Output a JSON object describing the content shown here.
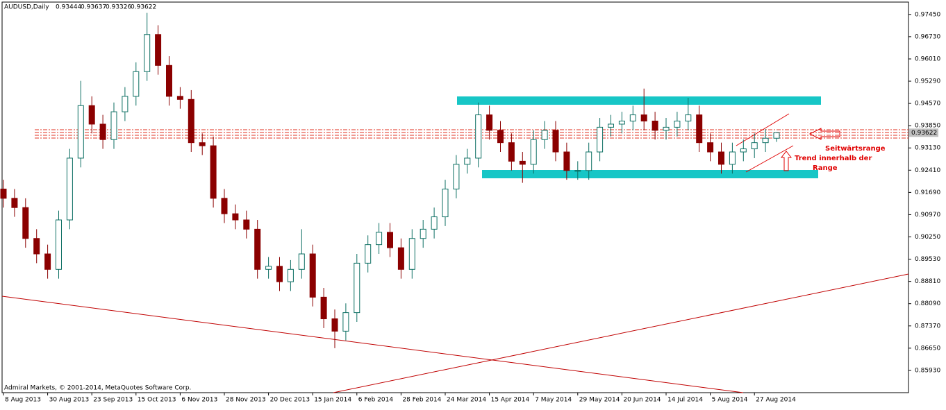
{
  "chart_data": {
    "type": "candlestick",
    "title": "AUDUSD,Daily",
    "credit": "Admiral Markets, © 2001-2014, MetaQuotes Software Corp.",
    "annotations": [
      "Seitwärtsrange",
      "Trend innerhalb der",
      "Range"
    ],
    "up_color": "#0b6e62",
    "down_color": "#8b0000",
    "categories": [
      "8 Aug 2013",
      null,
      null,
      null,
      "30 Aug 2013",
      null,
      null,
      null,
      "23 Sep 2013",
      null,
      null,
      null,
      "15 Oct 2013",
      null,
      null,
      null,
      "6 Nov 2013",
      null,
      null,
      null,
      "28 Nov 2013",
      null,
      null,
      null,
      "20 Dec 2013",
      null,
      null,
      null,
      "15 Jan 2014",
      null,
      null,
      null,
      "6 Feb 2014",
      null,
      null,
      null,
      "28 Feb 2014",
      null,
      null,
      null,
      "24 Mar 2014",
      null,
      null,
      null,
      "15 Apr 2014",
      null,
      null,
      null,
      "7 May 2014",
      null,
      null,
      null,
      "29 May 2014",
      null,
      null,
      null,
      "20 Jun 2014",
      null,
      null,
      null,
      "14 Jul 2014",
      null,
      null,
      null,
      "5 Aug 2014",
      null,
      null,
      null,
      "27 Aug 2014",
      null,
      null
    ],
    "open": [
      0.918,
      0.915,
      0.912,
      0.902,
      0.897,
      0.892,
      0.908,
      0.928,
      0.945,
      0.939,
      0.934,
      0.943,
      0.948,
      0.956,
      0.968,
      0.958,
      0.948,
      0.947,
      0.933,
      0.932,
      0.915,
      0.91,
      0.908,
      0.905,
      0.892,
      0.893,
      0.888,
      0.892,
      0.897,
      0.883,
      0.876,
      0.872,
      0.878,
      0.894,
      0.9,
      0.904,
      0.899,
      0.892,
      0.902,
      0.905,
      0.909,
      0.918,
      0.926,
      0.928,
      0.942,
      0.937,
      0.933,
      0.927,
      0.926,
      0.934,
      0.937,
      0.93,
      0.924,
      0.924,
      0.93,
      0.938,
      0.939,
      0.94,
      0.942,
      0.94,
      0.937,
      0.938,
      0.94,
      0.942,
      0.933,
      0.93,
      0.926,
      0.93,
      0.931,
      0.933,
      0.93444
    ],
    "high": [
      0.921,
      0.918,
      0.915,
      0.905,
      0.9,
      0.911,
      0.931,
      0.953,
      0.948,
      0.942,
      0.946,
      0.951,
      0.959,
      0.975,
      0.971,
      0.961,
      0.951,
      0.95,
      0.936,
      0.935,
      0.918,
      0.913,
      0.911,
      0.908,
      0.896,
      0.896,
      0.895,
      0.905,
      0.9,
      0.886,
      0.879,
      0.881,
      0.897,
      0.903,
      0.907,
      0.907,
      0.902,
      0.905,
      0.908,
      0.912,
      0.921,
      0.929,
      0.931,
      0.946,
      0.945,
      0.94,
      0.936,
      0.93,
      0.937,
      0.94,
      0.94,
      0.933,
      0.927,
      0.933,
      0.941,
      0.942,
      0.943,
      0.945,
      0.9505,
      0.943,
      0.941,
      0.943,
      0.9475,
      0.945,
      0.936,
      0.933,
      0.933,
      0.934,
      0.936,
      0.9374,
      0.93637
    ],
    "low": [
      0.912,
      0.909,
      0.899,
      0.894,
      0.889,
      0.889,
      0.905,
      0.925,
      0.936,
      0.931,
      0.931,
      0.94,
      0.945,
      0.953,
      0.955,
      0.945,
      0.944,
      0.93,
      0.929,
      0.912,
      0.907,
      0.905,
      0.902,
      0.889,
      0.889,
      0.885,
      0.885,
      0.889,
      0.88,
      0.873,
      0.8665,
      0.869,
      0.875,
      0.891,
      0.897,
      0.896,
      0.889,
      0.889,
      0.899,
      0.902,
      0.906,
      0.915,
      0.923,
      0.925,
      0.934,
      0.93,
      0.924,
      0.92,
      0.923,
      0.931,
      0.927,
      0.921,
      0.921,
      0.921,
      0.927,
      0.935,
      0.936,
      0.937,
      0.937,
      0.934,
      0.934,
      0.935,
      0.937,
      0.93,
      0.927,
      0.923,
      0.923,
      0.927,
      0.928,
      0.93,
      0.93326
    ],
    "close": [
      0.915,
      0.912,
      0.902,
      0.897,
      0.892,
      0.908,
      0.928,
      0.945,
      0.939,
      0.934,
      0.943,
      0.948,
      0.956,
      0.968,
      0.958,
      0.948,
      0.947,
      0.933,
      0.932,
      0.915,
      0.91,
      0.908,
      0.905,
      0.892,
      0.893,
      0.888,
      0.892,
      0.897,
      0.883,
      0.876,
      0.872,
      0.878,
      0.894,
      0.9,
      0.904,
      0.899,
      0.892,
      0.902,
      0.905,
      0.909,
      0.918,
      0.926,
      0.928,
      0.942,
      0.937,
      0.933,
      0.927,
      0.926,
      0.934,
      0.937,
      0.93,
      0.924,
      0.924,
      0.93,
      0.938,
      0.939,
      0.94,
      0.942,
      0.94,
      0.937,
      0.938,
      0.94,
      0.942,
      0.933,
      0.93,
      0.926,
      0.93,
      0.931,
      0.933,
      0.93444,
      0.93622
    ],
    "ylim": [
      0.8521,
      0.9785
    ],
    "yticks": [
      {
        "value": 0.9745,
        "label": "0.97450"
      },
      {
        "value": 0.9673,
        "label": "0.96730"
      },
      {
        "value": 0.9601,
        "label": "0.96010"
      },
      {
        "value": 0.9529,
        "label": "0.95290"
      },
      {
        "value": 0.9457,
        "label": "0.94570"
      },
      {
        "value": 0.9385,
        "label": "0.93850"
      },
      {
        "value": 0.9313,
        "label": "0.93130"
      },
      {
        "value": 0.9241,
        "label": "0.92410"
      },
      {
        "value": 0.9169,
        "label": "0.91690"
      },
      {
        "value": 0.9097,
        "label": "0.90970"
      },
      {
        "value": 0.9025,
        "label": "0.90250"
      },
      {
        "value": 0.8953,
        "label": "0.89530"
      },
      {
        "value": 0.8881,
        "label": "0.88810"
      },
      {
        "value": 0.8809,
        "label": "0.88090"
      },
      {
        "value": 0.8737,
        "label": "0.87370"
      },
      {
        "value": 0.8665,
        "label": "0.86650"
      },
      {
        "value": 0.8593,
        "label": "0.85930"
      }
    ]
  }
}
